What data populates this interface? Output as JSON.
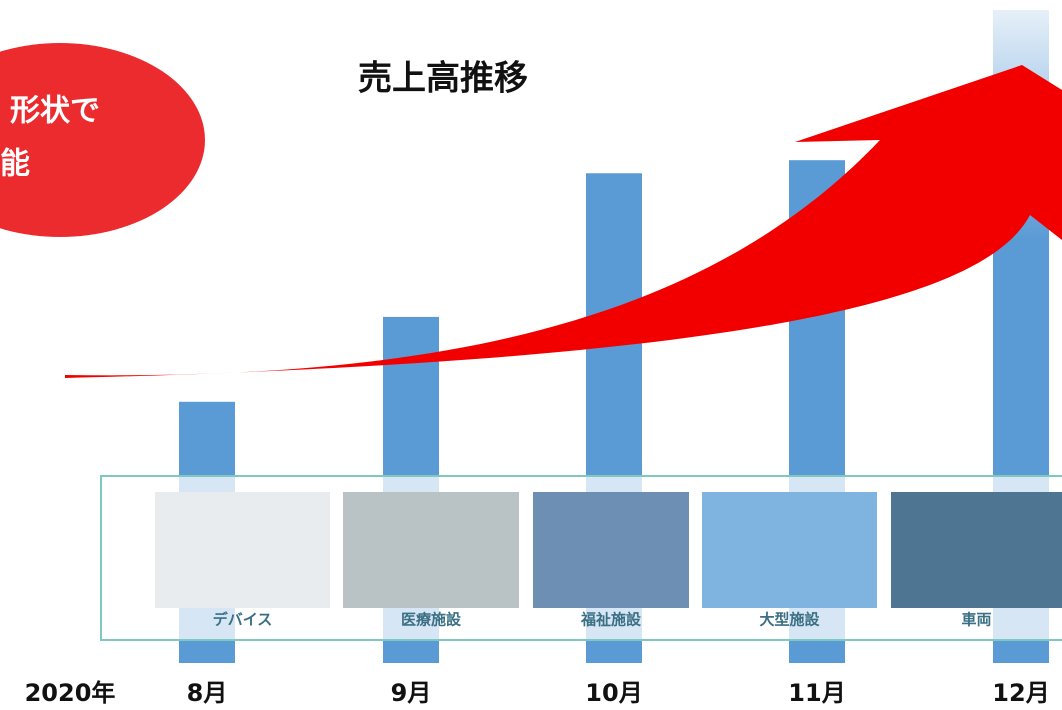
{
  "chart_data": {
    "type": "bar",
    "title": "売上高推移",
    "annotation": [
      "形状で",
      "能"
    ],
    "year_label": "2020年",
    "categories": [
      "8月",
      "9月",
      "10月",
      "11月",
      "12月"
    ],
    "values": [
      40,
      53,
      75,
      77,
      100
    ],
    "color": "#5b9bd5",
    "ylim": [
      0,
      100
    ],
    "captions": [
      "デバイス",
      "医療施設",
      "福祉施設",
      "大型施設",
      "車両"
    ]
  }
}
